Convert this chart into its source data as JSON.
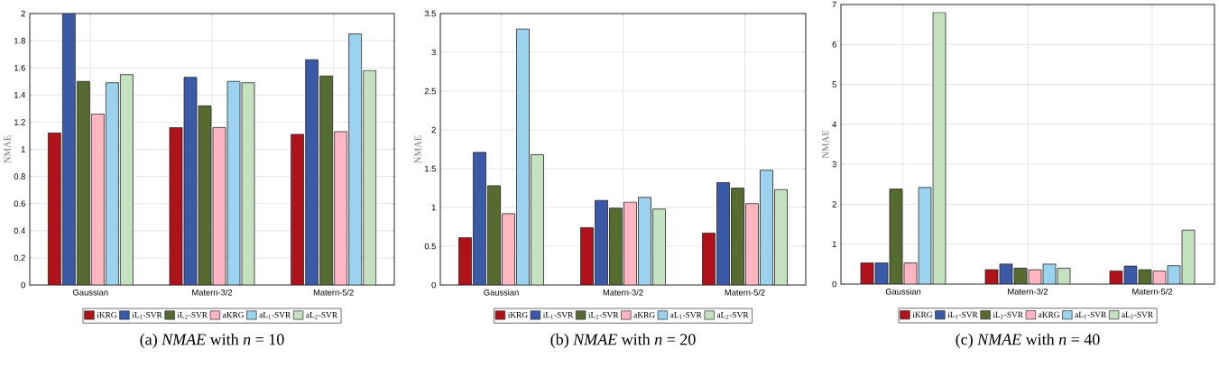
{
  "chart_data": [
    {
      "type": "bar",
      "title": "(a) *NMAE* with *n* = 10",
      "ylabel": "NMAE",
      "categories": [
        "Gaussian",
        "Matern-3/2",
        "Matern-5/2"
      ],
      "series": [
        {
          "name": "iKRG",
          "color": "#b0121b",
          "values": [
            1.12,
            1.16,
            1.11
          ]
        },
        {
          "name": "iL$_{1}$-SVR",
          "color": "#3a5aa8",
          "values": [
            2.0,
            1.53,
            1.66
          ]
        },
        {
          "name": "iL$_{2}$-SVR",
          "color": "#556b2f",
          "values": [
            1.5,
            1.32,
            1.54
          ]
        },
        {
          "name": "aKRG",
          "color": "#ffb6c1",
          "values": [
            1.26,
            1.16,
            1.13
          ]
        },
        {
          "name": "aL$_{1}$-SVR",
          "color": "#9bd3ee",
          "values": [
            1.49,
            1.5,
            1.85
          ]
        },
        {
          "name": "aL$_{2}$-SVR",
          "color": "#c5e2c0",
          "values": [
            1.55,
            1.49,
            1.58
          ]
        }
      ],
      "ylim": [
        0,
        2
      ],
      "yticks": [
        0,
        0.2,
        0.4,
        0.6,
        0.8,
        1,
        1.2,
        1.4,
        1.6,
        1.8,
        2
      ],
      "grid": true,
      "legend": "bottom"
    },
    {
      "type": "bar",
      "title": "(b) *NMAE* with *n* = 20",
      "ylabel": "NMAE",
      "categories": [
        "Gaussian",
        "Matern-3/2",
        "Matern-5/2"
      ],
      "series": [
        {
          "name": "iKRG",
          "color": "#b0121b",
          "values": [
            0.61,
            0.74,
            0.67
          ]
        },
        {
          "name": "iL$_{1}$-SVR",
          "color": "#3a5aa8",
          "values": [
            1.71,
            1.09,
            1.32
          ]
        },
        {
          "name": "iL$_{2}$-SVR",
          "color": "#556b2f",
          "values": [
            1.28,
            0.99,
            1.25
          ]
        },
        {
          "name": "aKRG",
          "color": "#ffb6c1",
          "values": [
            0.92,
            1.07,
            1.05
          ]
        },
        {
          "name": "aL$_{1}$-SVR",
          "color": "#9bd3ee",
          "values": [
            3.3,
            1.13,
            1.48
          ]
        },
        {
          "name": "aL$_{2}$-SVR",
          "color": "#c5e2c0",
          "values": [
            1.68,
            0.98,
            1.23
          ]
        }
      ],
      "ylim": [
        0,
        3.5
      ],
      "yticks": [
        0,
        0.5,
        1,
        1.5,
        2,
        2.5,
        3,
        3.5
      ],
      "grid": true,
      "legend": "bottom"
    },
    {
      "type": "bar",
      "title": "(c) *NMAE* with *n* = 40",
      "ylabel": "NMAE",
      "categories": [
        "Gaussian",
        "Matern-3/2",
        "Matern-5/2"
      ],
      "series": [
        {
          "name": "iKRG",
          "color": "#b0121b",
          "values": [
            0.53,
            0.36,
            0.33
          ]
        },
        {
          "name": "iL$_{1}$-SVR",
          "color": "#3a5aa8",
          "values": [
            0.53,
            0.5,
            0.45
          ]
        },
        {
          "name": "iL$_{2}$-SVR",
          "color": "#556b2f",
          "values": [
            2.38,
            0.4,
            0.36
          ]
        },
        {
          "name": "aKRG",
          "color": "#ffb6c1",
          "values": [
            0.53,
            0.36,
            0.33
          ]
        },
        {
          "name": "aL$_{1}$-SVR",
          "color": "#9bd3ee",
          "values": [
            2.42,
            0.5,
            0.46
          ]
        },
        {
          "name": "aL$_{2}$-SVR",
          "color": "#c5e2c0",
          "values": [
            6.8,
            0.4,
            1.35
          ]
        }
      ],
      "ylim": [
        0,
        7
      ],
      "yticks": [
        0,
        1,
        2,
        3,
        4,
        5,
        6,
        7
      ],
      "grid": true,
      "legend": "bottom"
    }
  ]
}
